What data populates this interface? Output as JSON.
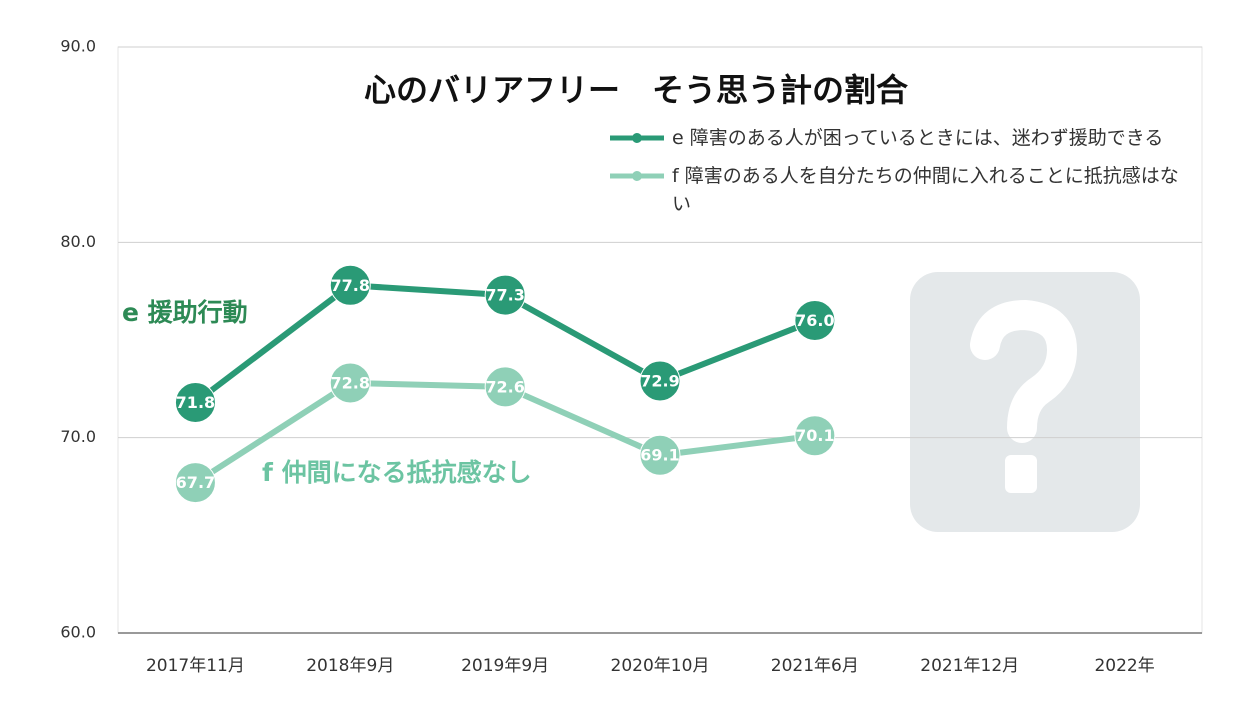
{
  "chart_data": {
    "type": "line",
    "title": "心のバリアフリー　そう思う計の割合",
    "categories": [
      "2017年11月",
      "2018年9月",
      "2019年9月",
      "2020年10月",
      "2021年6月",
      "2021年12月",
      "2022年"
    ],
    "series": [
      {
        "name": "e 障害のある人が困っているときには、迷わず援助できる",
        "color": "#2a9a76",
        "values": [
          71.8,
          77.8,
          77.3,
          72.9,
          76.0,
          null,
          null
        ],
        "value_labels": [
          "71.8",
          "77.8",
          "77.3",
          "72.9",
          "76.0",
          null,
          null
        ]
      },
      {
        "name": "f 障害のある人を自分たちの仲間に入れることに抵抗感はない",
        "color": "#8fd0b7",
        "values": [
          67.7,
          72.8,
          72.6,
          69.1,
          70.1,
          null,
          null
        ],
        "value_labels": [
          "67.7",
          "72.8",
          "72.6",
          "69.1",
          "70.1",
          null,
          null
        ]
      }
    ],
    "annotations": [
      "e 援助行動",
      "f 仲間になる抵抗感なし"
    ],
    "ylim": [
      60,
      90
    ],
    "yticks": [
      {
        "value": 60,
        "label": "60.0"
      },
      {
        "value": 70,
        "label": "70.0"
      },
      {
        "value": 80,
        "label": "80.0"
      },
      {
        "value": 90,
        "label": "90.0"
      }
    ],
    "grid": true,
    "legend": "top-right"
  }
}
